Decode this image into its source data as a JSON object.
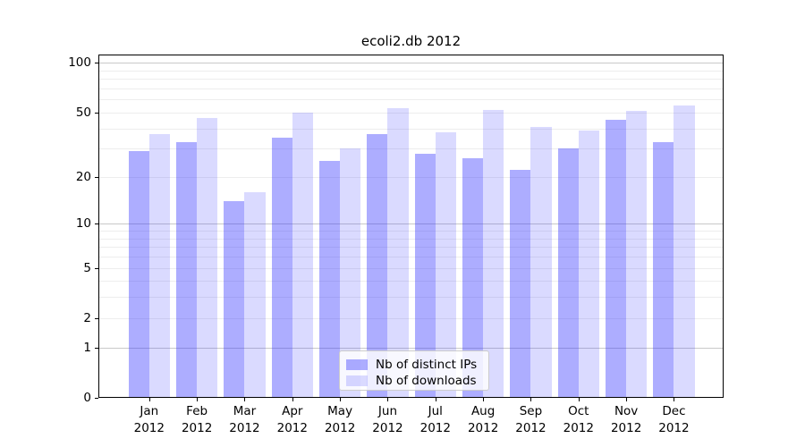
{
  "chart_data": {
    "type": "bar",
    "title": "ecoli2.db 2012",
    "categories": [
      "Jan",
      "Feb",
      "Mar",
      "Apr",
      "May",
      "Jun",
      "Jul",
      "Aug",
      "Sep",
      "Oct",
      "Nov",
      "Dec"
    ],
    "year_label": "2012",
    "series": [
      {
        "name": "Nb of distinct IPs",
        "color": "rgba(51,51,255,0.40)",
        "values": [
          29,
          33,
          14,
          35,
          25,
          37,
          28,
          26,
          22,
          30,
          45,
          33
        ]
      },
      {
        "name": "Nb of downloads",
        "color": "rgba(51,51,255,0.18)",
        "values": [
          37,
          46,
          16,
          50,
          30,
          53,
          38,
          52,
          41,
          39,
          51,
          55
        ]
      }
    ],
    "yscale": "log1p",
    "ylim": [
      0,
      111
    ],
    "y_tick_values": [
      0,
      1,
      2,
      5,
      10,
      20,
      50,
      100
    ],
    "y_tick_labels": [
      "0",
      "1",
      "2",
      "5",
      "10",
      "20",
      "50",
      "100"
    ],
    "grid": {
      "major_values": [
        1,
        10,
        100
      ],
      "minor_values": [
        2,
        3,
        4,
        5,
        6,
        7,
        8,
        9,
        20,
        30,
        40,
        50,
        60,
        70,
        80,
        90
      ],
      "major_color": "#c9c9c9",
      "minor_color": "#ededed"
    },
    "legend_position": "lower center",
    "xlabel": "",
    "ylabel": ""
  }
}
